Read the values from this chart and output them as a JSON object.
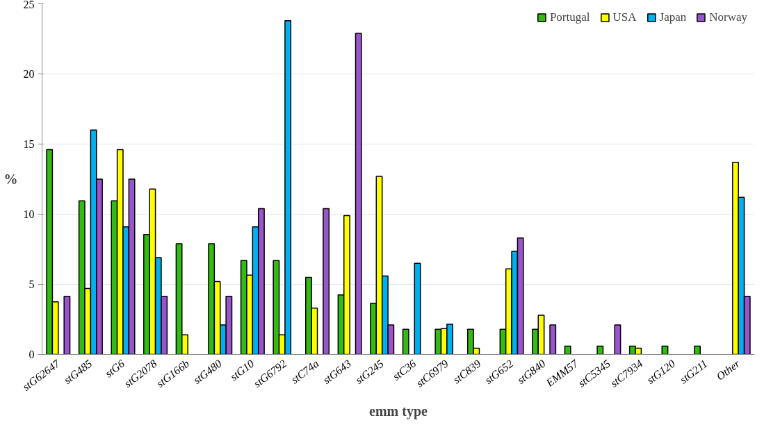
{
  "chart_data": {
    "type": "bar",
    "xlabel": "emm type",
    "ylabel": "%",
    "categories": [
      "stG62647",
      "stG485",
      "stG6",
      "stG2078",
      "stG166b",
      "stG480",
      "stG10",
      "stG6792",
      "stC74a",
      "stG643",
      "stG245",
      "stC36",
      "stC6979",
      "stC839",
      "stG652",
      "stG840",
      "EMM57",
      "stC5345",
      "stC7934",
      "stG120",
      "stG211",
      "Other"
    ],
    "series": [
      {
        "name": "Portugal",
        "color": "#33bb11",
        "values": [
          14.6,
          10.95,
          10.95,
          8.55,
          7.9,
          7.9,
          6.7,
          6.7,
          5.5,
          4.25,
          3.65,
          1.8,
          1.8,
          1.8,
          1.8,
          1.8,
          0.6,
          0.6,
          0.6,
          0.6,
          0.6,
          null
        ]
      },
      {
        "name": "USA",
        "color": "#ffff00",
        "values": [
          3.75,
          4.7,
          14.6,
          11.8,
          1.4,
          5.2,
          5.65,
          1.4,
          3.3,
          9.9,
          12.7,
          null,
          1.85,
          0.45,
          6.1,
          2.8,
          null,
          null,
          0.45,
          null,
          null,
          13.7
        ]
      },
      {
        "name": "Japan",
        "color": "#00b0f0",
        "values": [
          null,
          16.0,
          9.1,
          6.9,
          null,
          2.1,
          9.1,
          23.8,
          null,
          null,
          5.6,
          6.5,
          2.15,
          null,
          7.35,
          null,
          null,
          null,
          null,
          null,
          null,
          11.2
        ]
      },
      {
        "name": "Norway",
        "color": "#9955cc",
        "values": [
          4.15,
          12.5,
          12.5,
          4.15,
          null,
          4.15,
          10.4,
          null,
          10.4,
          22.9,
          2.1,
          null,
          null,
          null,
          8.3,
          2.1,
          null,
          2.1,
          null,
          null,
          null,
          4.15
        ]
      }
    ],
    "ylim": [
      0,
      25
    ],
    "yticks": [
      0,
      5,
      10,
      15,
      20,
      25
    ],
    "grid": "y",
    "legend": "top right"
  }
}
